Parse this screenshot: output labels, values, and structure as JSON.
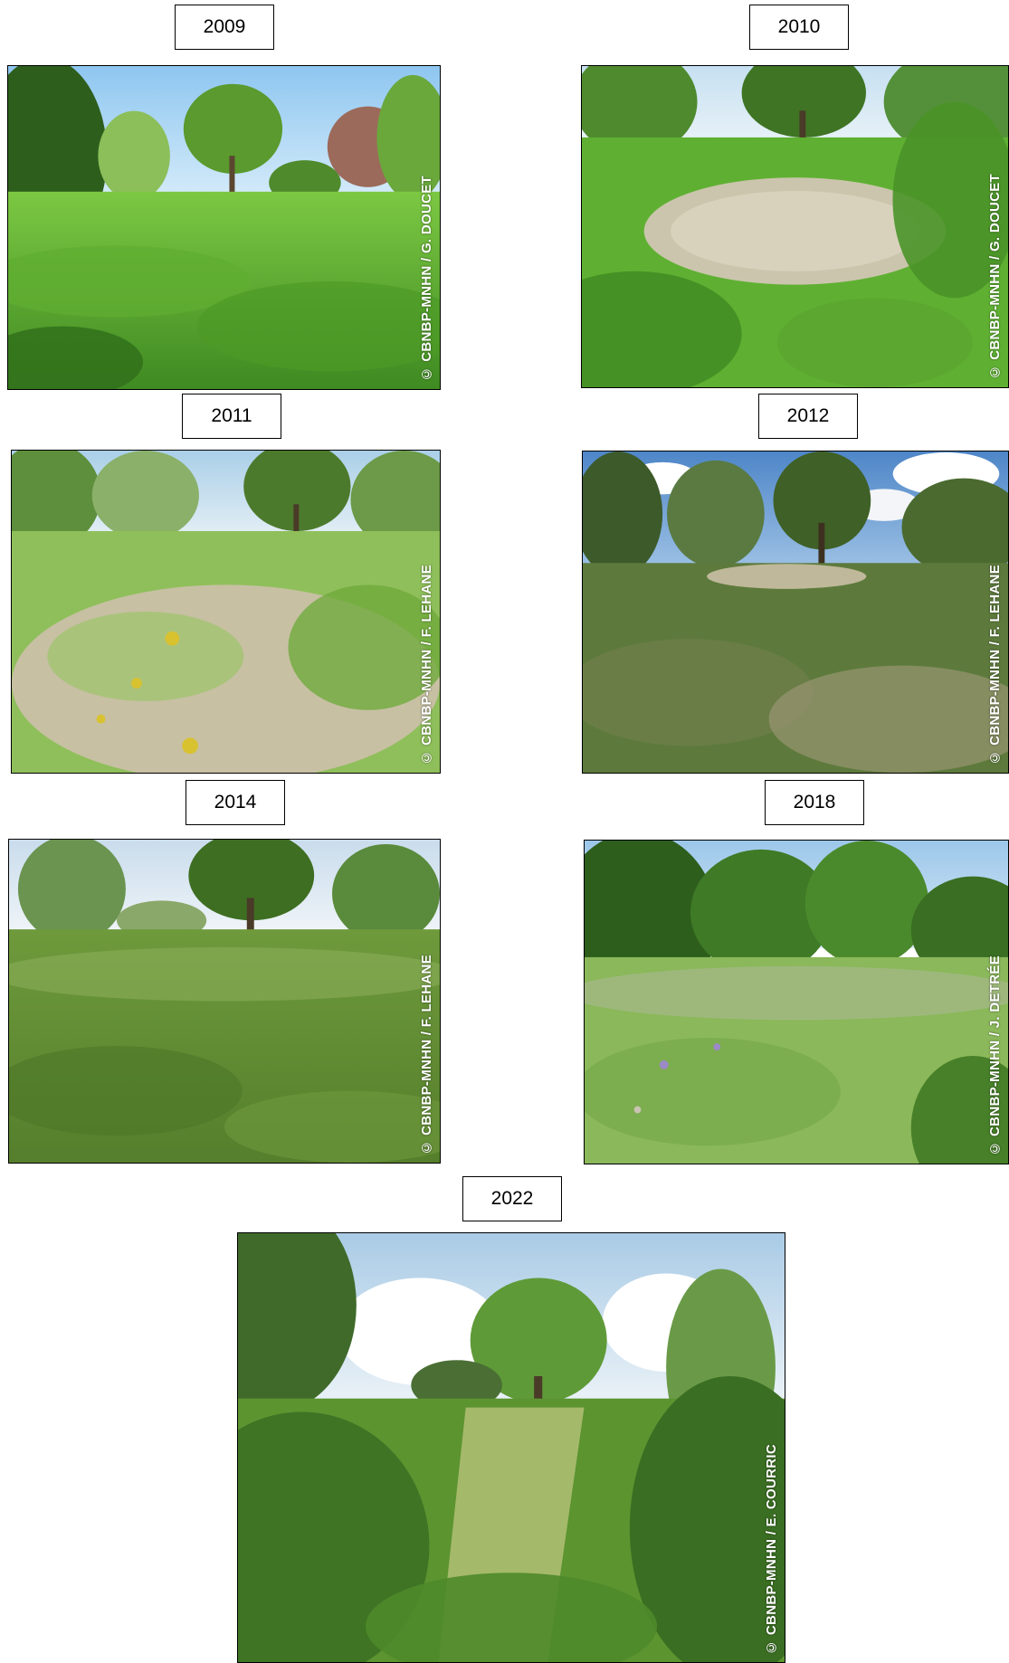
{
  "panels": [
    {
      "year": "2009",
      "credit": "© CBNBP-MNHN / G. DOUCET"
    },
    {
      "year": "2010",
      "credit": "© CBNBP-MNHN / G. DOUCET"
    },
    {
      "year": "2011",
      "credit": "© CBNBP-MNHN / F. LEHANE"
    },
    {
      "year": "2012",
      "credit": "© CBNBP-MNHN / F. LEHANE"
    },
    {
      "year": "2014",
      "credit": "© CBNBP-MNHN / F. LEHANE"
    },
    {
      "year": "2018",
      "credit": "© CBNBP-MNHN / J. DETRÉE"
    },
    {
      "year": "2022",
      "credit": "© CBNBP-MNHN / E. COURRIC"
    }
  ],
  "colors": {
    "sky": "#bcdcf2",
    "foliage_dark": "#2f6b1f",
    "foliage_mid": "#4f9a2c",
    "grass_bright": "#6fc23a",
    "bare_ground": "#c9c2a8"
  }
}
